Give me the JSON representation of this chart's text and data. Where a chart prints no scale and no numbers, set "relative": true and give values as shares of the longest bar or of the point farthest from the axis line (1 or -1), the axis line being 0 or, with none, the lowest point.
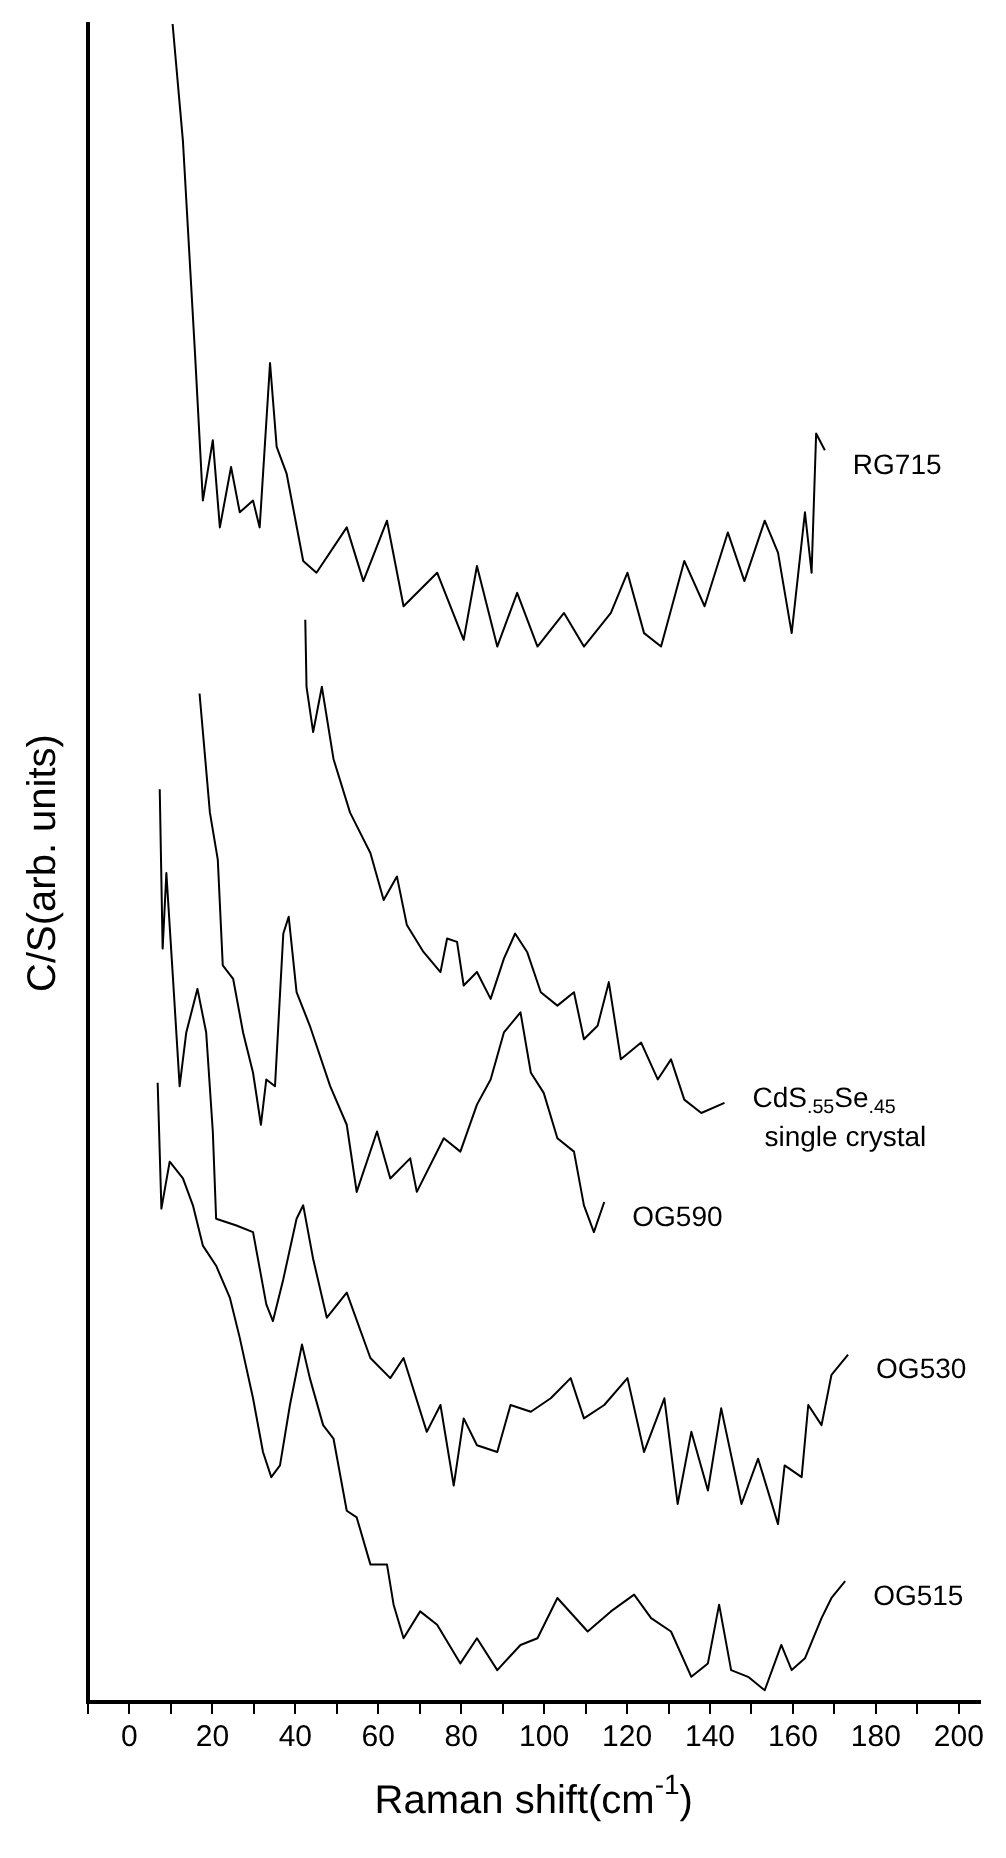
{
  "chart_data": {
    "type": "line",
    "relative": true,
    "xlabel": "Raman shift(cm$^{-1}$)",
    "ylabel": "C/S(arb. units)",
    "xlim": [
      -10,
      205
    ],
    "xticks": [
      {
        "value": -10,
        "label": null
      },
      0,
      {
        "value": 10,
        "label": null
      },
      20,
      {
        "value": 30,
        "label": null
      },
      40,
      {
        "value": 50,
        "label": null
      },
      60,
      {
        "value": 70,
        "label": null
      },
      80,
      {
        "value": 90,
        "label": null
      },
      100,
      {
        "value": 110,
        "label": null
      },
      120,
      {
        "value": 130,
        "label": null
      },
      140,
      {
        "value": 150,
        "label": null
      },
      160,
      {
        "value": 170,
        "label": null
      },
      180,
      {
        "value": 190,
        "label": null
      },
      200
    ],
    "grid": false,
    "legend": false,
    "marker": "none",
    "line_style": "solid",
    "series": [
      {
        "name": "RG715",
        "color": "#000000",
        "x": [
          10.4,
          12.9,
          15.8,
          17.7,
          20.1,
          21.8,
          24.5,
          26.6,
          29.8,
          31.4,
          33.9,
          35.5,
          37.9,
          41.9,
          45.1,
          52.4,
          56.4,
          62.1,
          66.1,
          74.2,
          80.6,
          83.8,
          88.7,
          93.5,
          98.4,
          104.8,
          109.6,
          116.1,
          120.1,
          124.1,
          128.2,
          133.8,
          138.7,
          144.3,
          148.3,
          153.2,
          156.4,
          159.7,
          162.9,
          164.5,
          165.6,
          167.7
        ],
        "values": [
          1.0,
          0.93,
          0.804,
          0.716,
          0.752,
          0.7,
          0.736,
          0.709,
          0.716,
          0.7,
          0.798,
          0.748,
          0.732,
          0.68,
          0.673,
          0.7,
          0.668,
          0.704,
          0.653,
          0.673,
          0.633,
          0.677,
          0.629,
          0.661,
          0.629,
          0.649,
          0.629,
          0.649,
          0.673,
          0.637,
          0.629,
          0.68,
          0.653,
          0.697,
          0.668,
          0.704,
          0.685,
          0.637,
          0.709,
          0.673,
          0.756,
          0.746
        ]
      },
      {
        "name": "CdS$_{.55}$Se$_{.45}$ single crystal",
        "color": "#000000",
        "x": [
          42.4,
          42.7,
          44.3,
          46.4,
          49.2,
          53.2,
          58.1,
          61.3,
          64.5,
          66.9,
          70.9,
          75.0,
          76.6,
          79.0,
          80.6,
          83.8,
          87.1,
          90.3,
          93.0,
          95.9,
          99.2,
          103.2,
          107.2,
          109.6,
          112.9,
          115.6,
          118.5,
          123.4,
          127.4,
          130.6,
          133.8,
          137.9,
          143.5
        ],
        "values": [
          0.645,
          0.605,
          0.578,
          0.605,
          0.562,
          0.53,
          0.506,
          0.478,
          0.492,
          0.463,
          0.447,
          0.435,
          0.455,
          0.453,
          0.427,
          0.435,
          0.419,
          0.443,
          0.458,
          0.447,
          0.423,
          0.415,
          0.423,
          0.395,
          0.403,
          0.429,
          0.383,
          0.393,
          0.371,
          0.383,
          0.359,
          0.351,
          0.357
        ]
      },
      {
        "name": "OG590",
        "color": "#000000",
        "x": [
          16.9,
          19.4,
          21.3,
          22.5,
          25.0,
          27.4,
          29.8,
          31.7,
          33.0,
          35.1,
          37.1,
          38.4,
          40.3,
          43.5,
          48.4,
          52.4,
          54.8,
          59.7,
          62.9,
          67.7,
          69.3,
          75.8,
          79.8,
          83.8,
          87.1,
          90.3,
          94.3,
          96.8,
          99.9,
          103.2,
          107.2,
          109.6,
          112.0,
          114.5
        ],
        "values": [
          0.601,
          0.53,
          0.502,
          0.439,
          0.431,
          0.399,
          0.375,
          0.344,
          0.371,
          0.367,
          0.458,
          0.468,
          0.423,
          0.403,
          0.367,
          0.344,
          0.304,
          0.34,
          0.312,
          0.324,
          0.304,
          0.336,
          0.328,
          0.356,
          0.371,
          0.399,
          0.411,
          0.375,
          0.363,
          0.336,
          0.328,
          0.296,
          0.28,
          0.298
        ]
      },
      {
        "name": "OG530",
        "color": "#000000",
        "x": [
          7.3,
          8.0,
          8.9,
          10.5,
          12.1,
          13.7,
          16.4,
          18.5,
          20.1,
          20.9,
          25.8,
          29.8,
          33.0,
          34.6,
          37.1,
          40.3,
          41.9,
          44.3,
          47.6,
          52.4,
          58.1,
          62.9,
          66.1,
          71.7,
          75.0,
          78.2,
          80.6,
          83.8,
          88.7,
          91.9,
          96.8,
          101.6,
          106.4,
          109.6,
          114.5,
          120.1,
          124.1,
          129.0,
          132.2,
          135.5,
          139.5,
          142.7,
          147.6,
          151.6,
          156.4,
          158.0,
          162.1,
          163.7,
          166.9,
          169.3,
          173.3
        ],
        "values": [
          0.544,
          0.449,
          0.494,
          0.431,
          0.367,
          0.399,
          0.425,
          0.399,
          0.34,
          0.288,
          0.284,
          0.28,
          0.237,
          0.227,
          0.252,
          0.288,
          0.296,
          0.264,
          0.229,
          0.244,
          0.205,
          0.193,
          0.205,
          0.161,
          0.177,
          0.129,
          0.169,
          0.153,
          0.149,
          0.177,
          0.173,
          0.181,
          0.193,
          0.169,
          0.177,
          0.193,
          0.149,
          0.181,
          0.118,
          0.161,
          0.126,
          0.175,
          0.118,
          0.145,
          0.106,
          0.141,
          0.134,
          0.177,
          0.165,
          0.195,
          0.207
        ]
      },
      {
        "name": "OG515",
        "color": "#000000",
        "x": [
          6.8,
          7.7,
          9.7,
          12.9,
          15.3,
          17.7,
          20.9,
          24.2,
          26.6,
          29.8,
          32.2,
          34.2,
          36.3,
          38.7,
          41.6,
          43.5,
          46.7,
          49.2,
          52.4,
          54.8,
          58.1,
          62.1,
          63.7,
          66.1,
          70.1,
          74.2,
          79.8,
          83.8,
          88.7,
          94.3,
          98.4,
          103.2,
          110.5,
          116.1,
          121.7,
          125.8,
          130.6,
          135.5,
          139.5,
          142.2,
          145.1,
          149.2,
          153.2,
          157.2,
          159.7,
          162.9,
          166.9,
          169.3,
          172.6
        ],
        "values": [
          0.369,
          0.294,
          0.322,
          0.312,
          0.296,
          0.272,
          0.26,
          0.241,
          0.217,
          0.181,
          0.149,
          0.134,
          0.141,
          0.177,
          0.213,
          0.193,
          0.165,
          0.157,
          0.114,
          0.11,
          0.082,
          0.082,
          0.058,
          0.038,
          0.054,
          0.046,
          0.023,
          0.038,
          0.019,
          0.034,
          0.038,
          0.062,
          0.042,
          0.054,
          0.064,
          0.05,
          0.042,
          0.015,
          0.023,
          0.058,
          0.019,
          0.015,
          0.007,
          0.034,
          0.019,
          0.026,
          0.05,
          0.062,
          0.072
        ]
      }
    ]
  }
}
